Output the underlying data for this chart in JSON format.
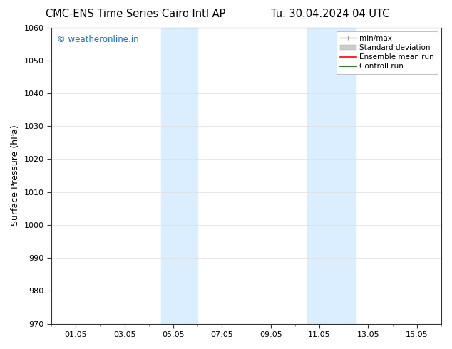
{
  "title_left": "CMC-ENS Time Series Cairo Intl AP",
  "title_right": "Tu. 30.04.2024 04 UTC",
  "ylabel": "Surface Pressure (hPa)",
  "ylim": [
    970,
    1060
  ],
  "yticks": [
    970,
    980,
    990,
    1000,
    1010,
    1020,
    1030,
    1040,
    1050,
    1060
  ],
  "xtick_labels": [
    "01.05",
    "03.05",
    "05.05",
    "07.05",
    "09.05",
    "11.05",
    "13.05",
    "15.05"
  ],
  "xtick_positions": [
    1,
    3,
    5,
    7,
    9,
    11,
    13,
    15
  ],
  "xlim": [
    0,
    16
  ],
  "shaded_bands": [
    {
      "x_start": 4.5,
      "x_end": 6.0,
      "color": "#daeeff"
    },
    {
      "x_start": 10.5,
      "x_end": 12.5,
      "color": "#daeeff"
    }
  ],
  "watermark_text": "© weatheronline.in",
  "watermark_color": "#1a6fc4",
  "legend_entries": [
    {
      "label": "min/max",
      "color": "#999999",
      "lw": 1.0
    },
    {
      "label": "Standard deviation",
      "color": "#cccccc",
      "lw": 6
    },
    {
      "label": "Ensemble mean run",
      "color": "#ff0000",
      "lw": 1.2
    },
    {
      "label": "Controll run",
      "color": "#006600",
      "lw": 1.2
    }
  ],
  "bg_color": "#ffffff",
  "plot_bg_color": "#ffffff",
  "spine_color": "#333333",
  "grid_color": "#dddddd",
  "title_fontsize": 10.5,
  "axis_label_fontsize": 9,
  "tick_fontsize": 8,
  "watermark_fontsize": 8.5,
  "legend_fontsize": 7.5
}
